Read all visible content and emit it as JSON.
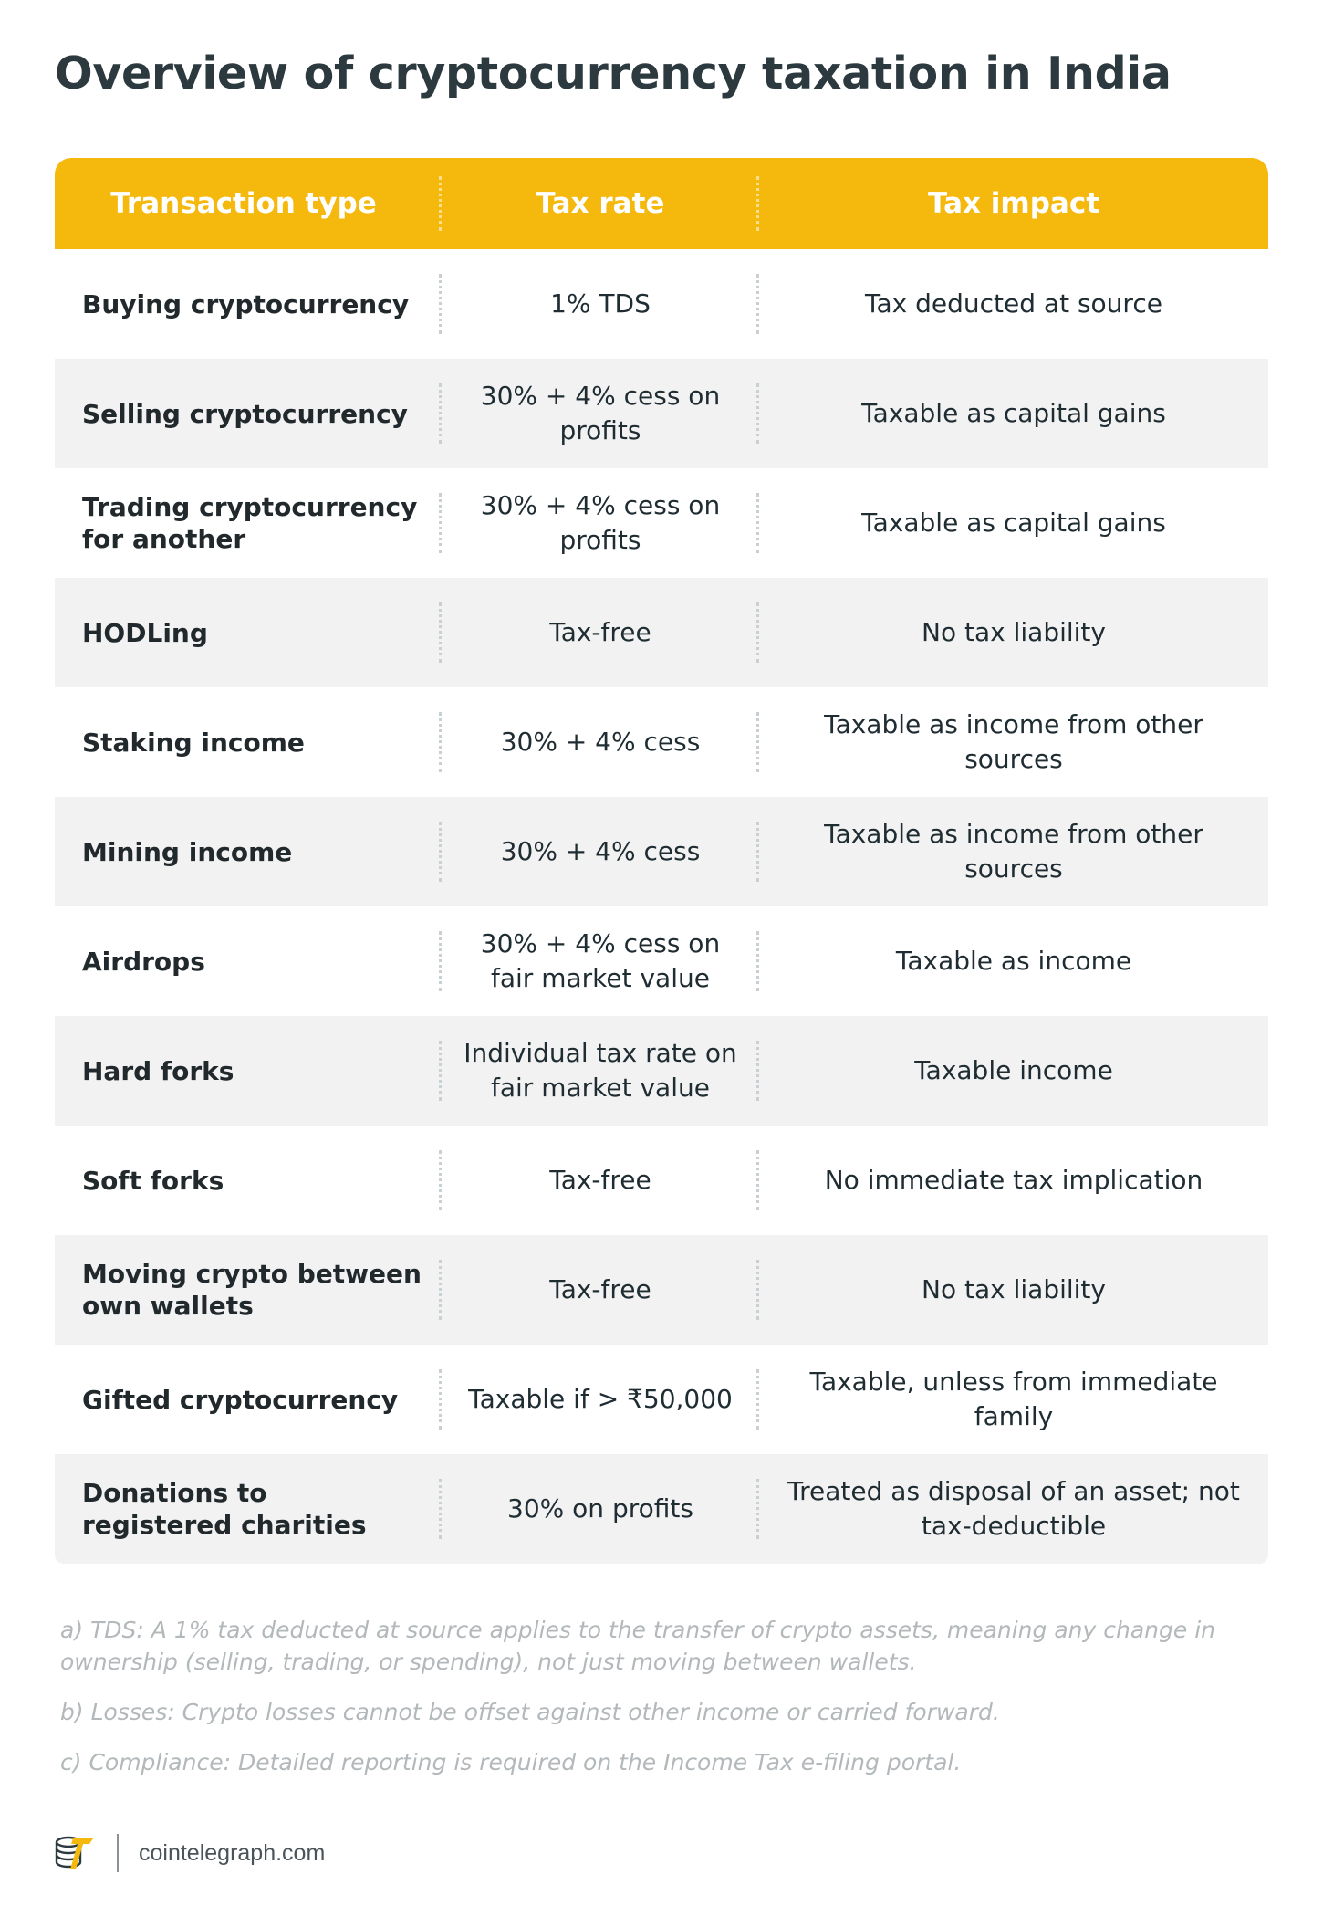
{
  "title": "Overview of cryptocurrency taxation in India",
  "table": {
    "headers": [
      "Transaction type",
      "Tax rate",
      "Tax impact"
    ],
    "rows": [
      {
        "type": "Buying cryptocurrency",
        "rate": "1% TDS",
        "impact": "Tax deducted at source"
      },
      {
        "type": "Selling cryptocurrency",
        "rate": "30% + 4% cess on profits",
        "impact": "Taxable as capital gains"
      },
      {
        "type": "Trading cryptocurrency for another",
        "rate": "30% + 4% cess on profits",
        "impact": "Taxable as capital gains"
      },
      {
        "type": "HODLing",
        "rate": "Tax-free",
        "impact": "No tax liability"
      },
      {
        "type": "Staking income",
        "rate": "30% + 4% cess",
        "impact": "Taxable as income from other sources"
      },
      {
        "type": "Mining income",
        "rate": "30% + 4% cess",
        "impact": "Taxable as income from other sources"
      },
      {
        "type": "Airdrops",
        "rate": "30% + 4% cess on fair market value",
        "impact": "Taxable as income"
      },
      {
        "type": "Hard forks",
        "rate": "Individual tax rate on fair market value",
        "impact": "Taxable income"
      },
      {
        "type": "Soft forks",
        "rate": "Tax-free",
        "impact": "No immediate tax implication"
      },
      {
        "type": "Moving crypto between own wallets",
        "rate": "Tax-free",
        "impact": "No tax liability"
      },
      {
        "type": "Gifted cryptocurrency",
        "rate": "Taxable if > ₹50,000",
        "impact": "Taxable, unless from immediate family"
      },
      {
        "type": "Donations to registered charities",
        "rate": "30% on profits",
        "impact": "Treated as disposal of an asset; not tax-deductible"
      }
    ]
  },
  "notes": [
    "a) TDS: A 1% tax deducted at source applies to the transfer of crypto assets, meaning any change in ownership (selling, trading, or spending), not just moving between wallets.",
    "b) Losses: Crypto losses cannot be offset against other income or carried forward.",
    "c) Compliance: Detailed reporting is required on the Income Tax e-filing portal."
  ],
  "footer": {
    "site": "cointelegraph.com",
    "logo_icon": "cointelegraph-logo-icon"
  },
  "colors": {
    "header": "#f5b80d",
    "row_alt": "#f2f2f2",
    "note_text": "#b3b8bb"
  }
}
